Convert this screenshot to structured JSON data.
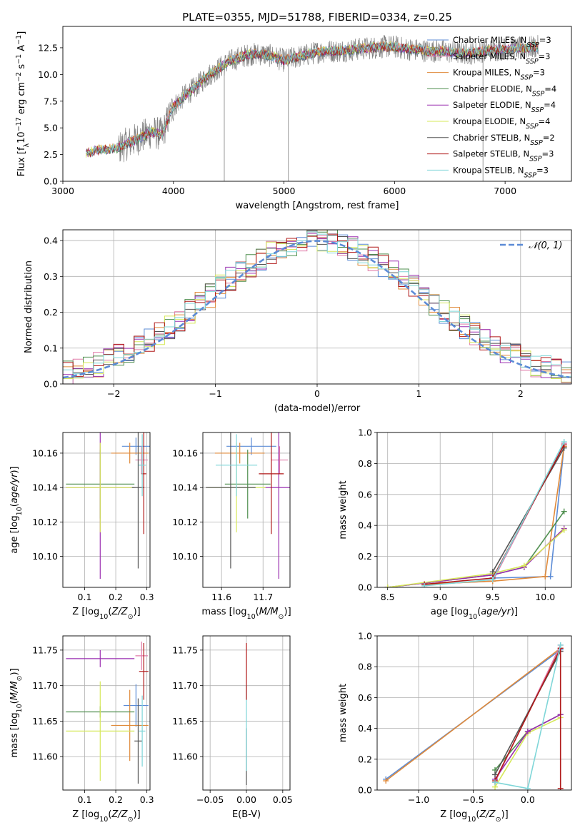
{
  "figure": {
    "title": "PLATE=0355, MJD=51788, FIBERID=0334, z=0.25"
  },
  "colors": {
    "Chabrier MILES": "#5b8bd6",
    "Salpeter MILES": "#e07aa8",
    "Kroupa MILES": "#e08a3a",
    "Chabrier ELODIE": "#4f8f4f",
    "Salpeter ELODIE": "#9a2eb0",
    "Kroupa ELODIE": "#d6e85a",
    "Chabrier STELIB": "#555555",
    "Salpeter STELIB": "#b01818",
    "Kroupa STELIB": "#7fd6d8",
    "data": "#808080",
    "gaussian": "#5b8bd6"
  },
  "chart_data": [
    {
      "id": "spectrum",
      "type": "line",
      "title": "PLATE=0355, MJD=51788, FIBERID=0334, z=0.25",
      "xlabel": "wavelength [Angstrom, rest frame]",
      "ylabel": "Flux [f_λ 10^-17 erg cm^-2 s^-1 A^-1]",
      "xlim": [
        3000,
        7600
      ],
      "ylim": [
        0,
        14.5
      ],
      "xticks": [
        3000,
        4000,
        5000,
        6000,
        7000
      ],
      "yticks": [
        0.0,
        2.5,
        5.0,
        7.5,
        10.0,
        12.5
      ],
      "grid": false,
      "legend_position": "right",
      "legend": [
        "Chabrier MILES, N_SSP=3",
        "Salpeter MILES, N_SSP=3",
        "Kroupa MILES, N_SSP=3",
        "Chabrier ELODIE, N_SSP=4",
        "Salpeter ELODIE, N_SSP=4",
        "Kroupa ELODIE, N_SSP=4",
        "Chabrier STELIB, N_SSP=2",
        "Salpeter STELIB, N_SSP=3",
        "Kroupa STELIB, N_SSP=3"
      ],
      "continuum": {
        "x": [
          3210,
          3300,
          3400,
          3500,
          3600,
          3700,
          3800,
          3900,
          3950,
          4000,
          4100,
          4200,
          4300,
          4400,
          4500,
          4600,
          4700,
          4800,
          4900,
          5000,
          5100,
          5200,
          5300,
          5400,
          5500,
          5600,
          5700,
          5800,
          5900,
          6000,
          6100,
          6200,
          6300,
          6400,
          6500,
          6600,
          6700,
          6800,
          6900,
          7000,
          7100,
          7200,
          7300
        ],
        "y": [
          2.6,
          2.9,
          3.0,
          3.1,
          3.6,
          4.1,
          4.6,
          4.4,
          5.8,
          7.0,
          8.0,
          8.8,
          9.8,
          10.5,
          11.2,
          11.6,
          11.9,
          11.9,
          11.7,
          11.3,
          11.6,
          11.8,
          12.1,
          12.2,
          12.2,
          12.3,
          12.4,
          12.5,
          12.6,
          12.6,
          12.4,
          12.3,
          12.2,
          12.2,
          12.1,
          12.0,
          12.0,
          12.2,
          12.3,
          12.4,
          12.4,
          12.5,
          12.6
        ]
      },
      "models_start_x": 3210,
      "data_start_x": 3210,
      "noise_start_x": 3500
    },
    {
      "id": "residuals",
      "type": "bar",
      "xlabel": "(data-model)/error",
      "ylabel": "Normed distribution",
      "xlim": [
        -2.5,
        2.5
      ],
      "ylim": [
        0,
        0.43
      ],
      "xticks": [
        -2,
        -1,
        0,
        1,
        2
      ],
      "yticks": [
        0.0,
        0.1,
        0.2,
        0.3,
        0.4
      ],
      "grid": true,
      "legend_position": "top-right",
      "legend": [
        "N(0,1)"
      ],
      "bin_width": 0.1
    },
    {
      "id": "age_vs_Z",
      "type": "scatter",
      "xlabel": "Z [log10(Z/Z⊙)]",
      "ylabel": "age  [log10(age/yr)]",
      "xlim": [
        0.03,
        0.31
      ],
      "ylim": [
        10.082,
        10.172
      ],
      "xticks": [
        0.1,
        0.2,
        0.3
      ],
      "yticks": [
        10.1,
        10.12,
        10.14,
        10.16
      ],
      "grid": true,
      "points": [
        {
          "model": "Chabrier MILES",
          "x": 0.265,
          "y": 10.164,
          "xerr": 0.045,
          "yerr": 0.005
        },
        {
          "model": "Salpeter MILES",
          "x": 0.283,
          "y": 10.156,
          "xerr": 0.02,
          "yerr": 0.008
        },
        {
          "model": "Kroupa MILES",
          "x": 0.245,
          "y": 10.16,
          "xerr": 0.06,
          "yerr": 0.006
        },
        {
          "model": "Chabrier ELODIE",
          "x": 0.15,
          "y": 10.142,
          "xerr": 0.11,
          "yerr": 0.02
        },
        {
          "model": "Salpeter ELODIE",
          "x": 0.15,
          "y": 10.14,
          "xerr": 0.11,
          "yerr": 0.053
        },
        {
          "model": "Kroupa ELODIE",
          "x": 0.15,
          "y": 10.14,
          "xerr": 0.11,
          "yerr": 0.026
        },
        {
          "model": "Chabrier STELIB",
          "x": 0.272,
          "y": 10.14,
          "xerr": 0.02,
          "yerr": 0.047
        },
        {
          "model": "Salpeter STELIB",
          "x": 0.29,
          "y": 10.148,
          "xerr": 0.008,
          "yerr": 0.035
        },
        {
          "model": "Kroupa STELIB",
          "x": 0.285,
          "y": 10.153,
          "xerr": 0.012,
          "yerr": 0.018
        }
      ]
    },
    {
      "id": "age_vs_mass",
      "type": "scatter",
      "xlabel": "mass [log10(M/M⊙)]",
      "ylabel": "",
      "xlim": [
        11.555,
        11.765
      ],
      "ylim": [
        10.082,
        10.172
      ],
      "xticks": [
        11.6,
        11.7
      ],
      "yticks": [
        10.1,
        10.12,
        10.14,
        10.16
      ],
      "grid": true,
      "points": [
        {
          "model": "Chabrier MILES",
          "x": 11.672,
          "y": 10.164,
          "xerr": 0.06,
          "yerr": 0.005
        },
        {
          "model": "Salpeter MILES",
          "x": 11.74,
          "y": 10.156,
          "xerr": 0.02,
          "yerr": 0.008
        },
        {
          "model": "Kroupa MILES",
          "x": 11.644,
          "y": 10.16,
          "xerr": 0.06,
          "yerr": 0.006
        },
        {
          "model": "Chabrier ELODIE",
          "x": 11.663,
          "y": 10.142,
          "xerr": 0.055,
          "yerr": 0.02
        },
        {
          "model": "Salpeter ELODIE",
          "x": 11.738,
          "y": 10.14,
          "xerr": 0.035,
          "yerr": 0.053
        },
        {
          "model": "Kroupa ELODIE",
          "x": 11.636,
          "y": 10.14,
          "xerr": 0.07,
          "yerr": 0.026
        },
        {
          "model": "Chabrier STELIB",
          "x": 11.622,
          "y": 10.14,
          "xerr": 0.06,
          "yerr": 0.047
        },
        {
          "model": "Salpeter STELIB",
          "x": 11.72,
          "y": 10.148,
          "xerr": 0.03,
          "yerr": 0.035
        },
        {
          "model": "Kroupa STELIB",
          "x": 11.636,
          "y": 10.153,
          "xerr": 0.05,
          "yerr": 0.018
        }
      ]
    },
    {
      "id": "mw_vs_age",
      "type": "line",
      "xlabel": "age  [log10(age/yr)]",
      "ylabel": "mass weight",
      "xlim": [
        8.4,
        10.25
      ],
      "ylim": [
        0,
        1.0
      ],
      "xticks": [
        8.5,
        9.0,
        9.5,
        10.0
      ],
      "yticks": [
        0.0,
        0.2,
        0.4,
        0.6,
        0.8,
        1.0
      ],
      "grid": true,
      "series": [
        {
          "model": "Chabrier MILES",
          "x": [
            9.5,
            10.05,
            10.18
          ],
          "y": [
            0.06,
            0.07,
            0.91
          ]
        },
        {
          "model": "Salpeter MILES",
          "x": [
            8.85,
            9.5,
            10.18
          ],
          "y": [
            0.02,
            0.04,
            0.93
          ]
        },
        {
          "model": "Kroupa MILES",
          "x": [
            8.85,
            9.5,
            10.0,
            10.18
          ],
          "y": [
            0.02,
            0.04,
            0.07,
            0.91
          ]
        },
        {
          "model": "Chabrier ELODIE",
          "x": [
            8.5,
            9.5,
            9.8,
            10.18
          ],
          "y": [
            0.0,
            0.08,
            0.13,
            0.49
          ]
        },
        {
          "model": "Salpeter ELODIE",
          "x": [
            8.5,
            9.5,
            9.8,
            10.18
          ],
          "y": [
            0.0,
            0.08,
            0.13,
            0.38
          ]
        },
        {
          "model": "Kroupa ELODIE",
          "x": [
            8.5,
            9.5,
            9.8,
            10.18
          ],
          "y": [
            0.0,
            0.09,
            0.14,
            0.37
          ]
        },
        {
          "model": "Chabrier STELIB",
          "x": [
            9.5,
            10.18
          ],
          "y": [
            0.1,
            0.9
          ]
        },
        {
          "model": "Salpeter STELIB",
          "x": [
            8.85,
            9.5,
            10.18
          ],
          "y": [
            0.02,
            0.06,
            0.92
          ]
        },
        {
          "model": "Kroupa STELIB",
          "x": [
            8.85,
            9.5,
            10.18
          ],
          "y": [
            0.01,
            0.05,
            0.94
          ]
        }
      ]
    },
    {
      "id": "mass_vs_Z",
      "type": "scatter",
      "xlabel": "Z [log10(Z/Z⊙)]",
      "ylabel": "mass [log10(M/M⊙)]",
      "xlim": [
        0.03,
        0.31
      ],
      "ylim": [
        11.553,
        11.77
      ],
      "xticks": [
        0.1,
        0.2,
        0.3
      ],
      "yticks": [
        11.6,
        11.65,
        11.7,
        11.75
      ],
      "grid": true,
      "points": [
        {
          "model": "Chabrier MILES",
          "x": 0.265,
          "y": 11.672,
          "xerr": 0.04,
          "yerr": 0.03
        },
        {
          "model": "Salpeter MILES",
          "x": 0.283,
          "y": 11.742,
          "xerr": 0.02,
          "yerr": 0.02
        },
        {
          "model": "Kroupa MILES",
          "x": 0.245,
          "y": 11.644,
          "xerr": 0.06,
          "yerr": 0.05
        },
        {
          "model": "Chabrier ELODIE",
          "x": 0.15,
          "y": 11.663,
          "xerr": 0.11,
          "yerr": 0.008
        },
        {
          "model": "Salpeter ELODIE",
          "x": 0.15,
          "y": 11.738,
          "xerr": 0.11,
          "yerr": 0.012
        },
        {
          "model": "Kroupa ELODIE",
          "x": 0.15,
          "y": 11.636,
          "xerr": 0.11,
          "yerr": 0.07
        },
        {
          "model": "Chabrier STELIB",
          "x": 0.272,
          "y": 11.622,
          "xerr": 0.012,
          "yerr": 0.06
        },
        {
          "model": "Salpeter STELIB",
          "x": 0.29,
          "y": 11.72,
          "xerr": 0.015,
          "yerr": 0.04
        },
        {
          "model": "Kroupa STELIB",
          "x": 0.285,
          "y": 11.636,
          "xerr": 0.01,
          "yerr": 0.05
        }
      ]
    },
    {
      "id": "mass_vs_ebv",
      "type": "scatter",
      "xlabel": "E(B-V)",
      "ylabel": "",
      "xlim": [
        -0.06,
        0.06
      ],
      "ylim": [
        11.553,
        11.77
      ],
      "xticks": [
        -0.05,
        0.0,
        0.05
      ],
      "yticks": [
        11.6,
        11.65,
        11.7,
        11.75
      ],
      "grid": true,
      "points": [
        {
          "model": "Chabrier STELIB",
          "x": 0.0,
          "y": 11.6,
          "xerr": 0.0,
          "yerr": 0.04
        },
        {
          "model": "Kroupa STELIB",
          "x": 0.0,
          "y": 11.64,
          "xerr": 0.0,
          "yerr": 0.06
        },
        {
          "model": "Salpeter STELIB",
          "x": 0.0,
          "y": 11.72,
          "xerr": 0.0,
          "yerr": 0.04
        }
      ]
    },
    {
      "id": "mw_vs_Z",
      "type": "line",
      "xlabel": "Z [log10(Z/Z⊙)]",
      "ylabel": "mass weight",
      "xlim": [
        -1.38,
        0.4
      ],
      "ylim": [
        0,
        1.0
      ],
      "xticks": [
        -1.0,
        -0.5,
        0.0
      ],
      "yticks": [
        0.0,
        0.2,
        0.4,
        0.6,
        0.8,
        1.0
      ],
      "grid": true,
      "series": [
        {
          "model": "Chabrier MILES",
          "x": [
            -1.3,
            0.3
          ],
          "y": [
            0.07,
            0.91
          ]
        },
        {
          "model": "Kroupa MILES",
          "x": [
            -1.3,
            0.3
          ],
          "y": [
            0.06,
            0.92
          ]
        },
        {
          "model": "Salpeter MILES",
          "x": [
            -0.3,
            0.3
          ],
          "y": [
            0.05,
            0.94
          ]
        },
        {
          "model": "Chabrier ELODIE",
          "x": [
            -0.3,
            0.0,
            0.3
          ],
          "y": [
            0.13,
            0.38,
            0.49
          ]
        },
        {
          "model": "Kroupa ELODIE",
          "x": [
            -0.3,
            0.0,
            0.3
          ],
          "y": [
            0.02,
            0.37,
            0.47
          ]
        },
        {
          "model": "Salpeter ELODIE",
          "x": [
            -0.3,
            0.0,
            0.3
          ],
          "y": [
            0.07,
            0.38,
            0.49
          ]
        },
        {
          "model": "Chabrier STELIB",
          "x": [
            -0.3,
            0.3
          ],
          "y": [
            0.1,
            0.9
          ]
        },
        {
          "model": "Salpeter STELIB",
          "x": [
            -0.3,
            0.3,
            0.3
          ],
          "y": [
            0.06,
            0.92,
            0.01
          ]
        },
        {
          "model": "Kroupa STELIB",
          "x": [
            -0.3,
            0.0,
            0.3
          ],
          "y": [
            0.05,
            0.01,
            0.94
          ]
        }
      ]
    }
  ]
}
